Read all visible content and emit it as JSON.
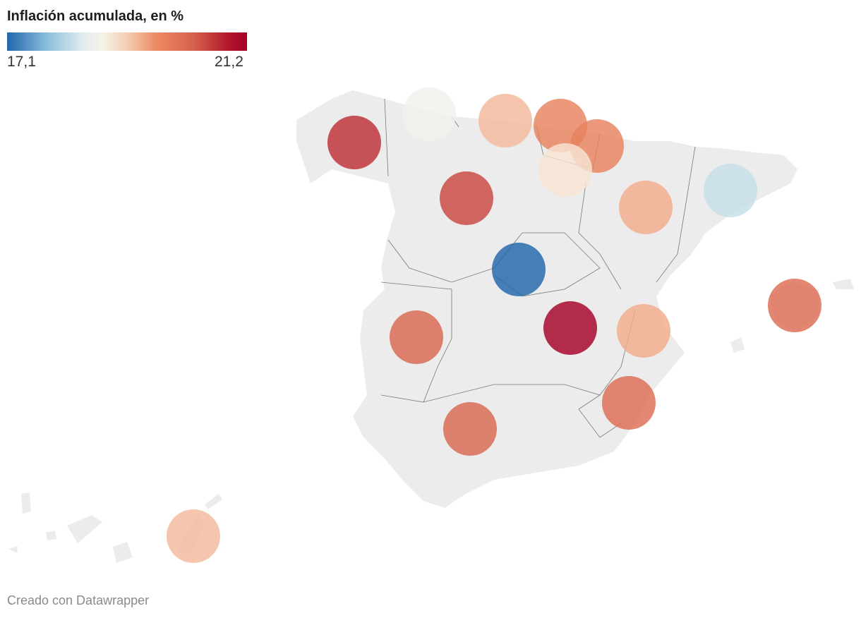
{
  "legend": {
    "title": "Inflación acumulada, en %",
    "min_label": "17,1",
    "max_label": "21,2",
    "min": 17.1,
    "max": 21.2,
    "colors": [
      "#2166ac",
      "#92c5de",
      "#e2ecef",
      "#f7f4e8",
      "#f4c3a6",
      "#ec8b63",
      "#d6604d",
      "#b2182b",
      "#a50026"
    ]
  },
  "footer": "Creado con Datawrapper",
  "regions": [
    {
      "name": "Galicia",
      "value": 20.7
    },
    {
      "name": "Asturias",
      "value": 18.6
    },
    {
      "name": "Cantabria",
      "value": 19.3
    },
    {
      "name": "País Vasco",
      "value": 19.8
    },
    {
      "name": "Navarra",
      "value": 19.8
    },
    {
      "name": "La Rioja",
      "value": 18.9
    },
    {
      "name": "Castilla y León",
      "value": 20.5
    },
    {
      "name": "Aragón",
      "value": 19.4
    },
    {
      "name": "Cataluña",
      "value": 18.2
    },
    {
      "name": "Madrid",
      "value": 17.1
    },
    {
      "name": "Castilla-La Mancha",
      "value": 21.2
    },
    {
      "name": "Comunitat Valenciana",
      "value": 19.4
    },
    {
      "name": "Extremadura",
      "value": 20.2
    },
    {
      "name": "Andalucía",
      "value": 20.2
    },
    {
      "name": "Murcia",
      "value": 20.1
    },
    {
      "name": "Illes Balears",
      "value": 20.1
    },
    {
      "name": "Canarias",
      "value": 19.3
    }
  ]
}
